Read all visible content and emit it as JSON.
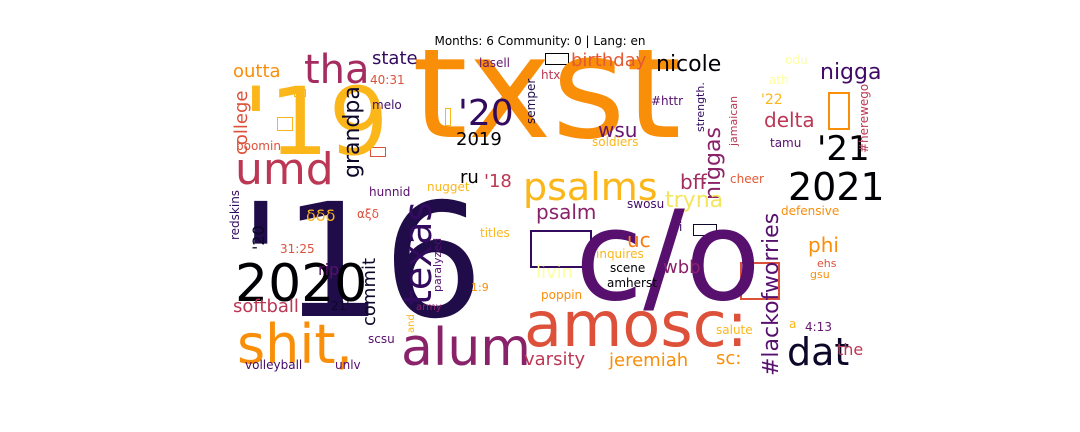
{
  "title": "Months: 6 Community: 0 | Lang: en",
  "words": [
    {
      "text": "txst",
      "color": "#f98e09"
    },
    {
      "text": "'16",
      "color": "#1f0c48"
    },
    {
      "text": "c/o",
      "color": "#57106e"
    },
    {
      "text": "'19",
      "color": "#fbb61a"
    },
    {
      "text": "amosc:",
      "color": "#dd513a"
    },
    {
      "text": "shit,",
      "color": "#f98e09"
    },
    {
      "text": "alum",
      "color": "#8a226a"
    },
    {
      "text": "2020",
      "color": "#000004"
    },
    {
      "text": "umd",
      "color": "#bc3754"
    },
    {
      "text": "psalms",
      "color": "#fbb61a"
    },
    {
      "text": "tha",
      "color": "#a52c60"
    },
    {
      "text": "2021",
      "color": "#000004"
    },
    {
      "text": "texas",
      "color": "#320a5e"
    },
    {
      "text": "dat",
      "color": "#0d0829"
    },
    {
      "text": "'20",
      "color": "#320a5e"
    },
    {
      "text": "'21",
      "color": "#000004"
    },
    {
      "text": "#lackofworries",
      "color": "#57106e"
    },
    {
      "text": "nicole",
      "color": "#000004"
    },
    {
      "text": "nigga",
      "color": "#420a68"
    },
    {
      "text": "niggas",
      "color": "#8a226a"
    },
    {
      "text": "delta",
      "color": "#bc3754"
    },
    {
      "text": "wsu",
      "color": "#65156e"
    },
    {
      "text": "psalm",
      "color": "#8a226a"
    },
    {
      "text": "bff",
      "color": "#a52c60"
    },
    {
      "text": "tryna",
      "color": "#f3e55d"
    },
    {
      "text": "birthday",
      "color": "#e35933"
    },
    {
      "text": "state",
      "color": "#320a5e"
    },
    {
      "text": "outta",
      "color": "#f98e09"
    },
    {
      "text": "college",
      "color": "#dd513a"
    },
    {
      "text": "grandpa",
      "color": "#0d0829"
    },
    {
      "text": "2019",
      "color": "#000004"
    },
    {
      "text": "ru",
      "color": "#000004"
    },
    {
      "text": "'18",
      "color": "#bc3754"
    },
    {
      "text": "uc",
      "color": "#f57d15"
    },
    {
      "text": "wbb",
      "color": "#8a226a"
    },
    {
      "text": "phi",
      "color": "#f98e09"
    },
    {
      "text": "commit",
      "color": "#0d0829"
    },
    {
      "text": "softball",
      "color": "#bc3754"
    },
    {
      "text": "varsity",
      "color": "#bc3754"
    },
    {
      "text": "jeremiah",
      "color": "#f98e09"
    },
    {
      "text": "sc:",
      "color": "#f98e09"
    },
    {
      "text": "the",
      "color": "#bc3754"
    },
    {
      "text": "rip",
      "color": "#57106e"
    },
    {
      "text": "livin",
      "color": "#fcffa4"
    },
    {
      "text": "'20",
      "color": "#0d0829"
    },
    {
      "text": "δδδ",
      "color": "#fbb61a"
    },
    {
      "text": "'22",
      "color": "#fbb61a"
    },
    {
      "text": "lasell",
      "color": "#65156e"
    },
    {
      "text": "40:31",
      "color": "#dd513a"
    },
    {
      "text": "melo",
      "color": "#420a68"
    },
    {
      "text": "semper",
      "color": "#1f0c48"
    },
    {
      "text": "htx",
      "color": "#bc3754"
    },
    {
      "text": "odu",
      "color": "#fcffa4"
    },
    {
      "text": "ath",
      "color": "#fcffa4"
    },
    {
      "text": "#httr",
      "color": "#57106e"
    },
    {
      "text": "strength.",
      "color": "#320a5e"
    },
    {
      "text": "jamaican",
      "color": "#bc3754"
    },
    {
      "text": "#herewego",
      "color": "#bc3754"
    },
    {
      "text": "soldiers",
      "color": "#fbb61a"
    },
    {
      "text": "tamu",
      "color": "#57106e"
    },
    {
      "text": "boomin",
      "color": "#dd513a"
    },
    {
      "text": "cheer",
      "color": "#e35933"
    },
    {
      "text": "defensive",
      "color": "#f98e09"
    },
    {
      "text": "hunnid",
      "color": "#57106e"
    },
    {
      "text": "nugget",
      "color": "#fbb61a"
    },
    {
      "text": "swosu",
      "color": "#420a68"
    },
    {
      "text": "redskins",
      "color": "#320a5e"
    },
    {
      "text": "αξδ",
      "color": "#dd513a"
    },
    {
      "text": "31:25",
      "color": "#dd513a"
    },
    {
      "text": "titles",
      "color": "#fbb61a"
    },
    {
      "text": "i",
      "color": "#320a5e"
    },
    {
      "text": "inquires",
      "color": "#fbb61a"
    },
    {
      "text": "paralyzed",
      "color": "#57106e"
    },
    {
      "text": "scene",
      "color": "#000004"
    },
    {
      "text": "ehs",
      "color": "#dd513a"
    },
    {
      "text": "gsu",
      "color": "#f98e09"
    },
    {
      "text": "1:9",
      "color": "#f98e09"
    },
    {
      "text": "amherst",
      "color": "#000004"
    },
    {
      "text": "poppin",
      "color": "#f98e09"
    },
    {
      "text": "21'",
      "color": "#0d0829"
    },
    {
      "text": "army",
      "color": "#8a226a"
    },
    {
      "text": "salute",
      "color": "#fbb61a"
    },
    {
      "text": "a",
      "color": "#fbb61a"
    },
    {
      "text": "4:13",
      "color": "#65156e"
    },
    {
      "text": "scsu",
      "color": "#57106e"
    },
    {
      "text": "and",
      "color": "#fbb61a"
    },
    {
      "text": "volleyball",
      "color": "#420a68"
    },
    {
      "text": "unlv",
      "color": "#57106e"
    }
  ]
}
